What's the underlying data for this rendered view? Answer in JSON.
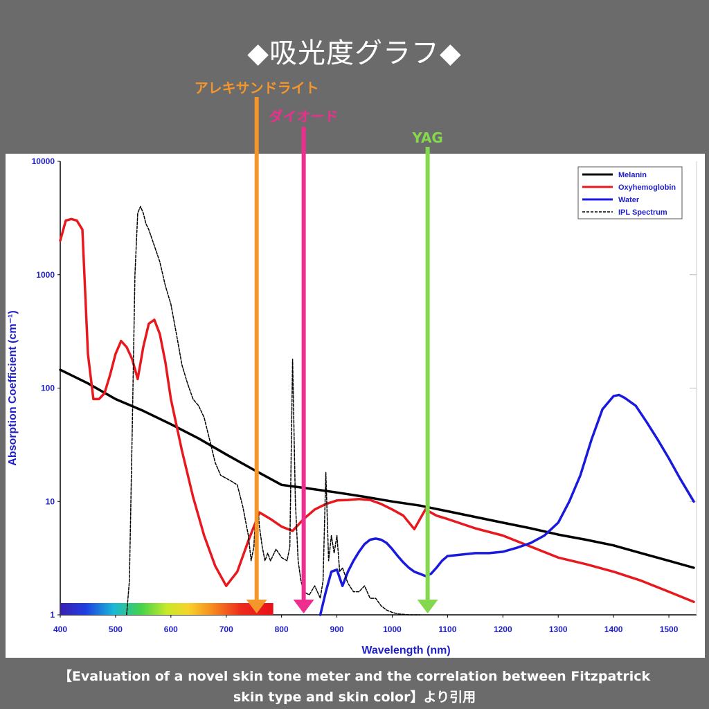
{
  "page": {
    "title": "◆吸光度グラフ◆",
    "caption_line1": "【Evaluation of a novel skin tone meter and the correlation between Fitzpatrick",
    "caption_line2": "skin type and skin color】より引用"
  },
  "colors": {
    "background": "#6b6b6b",
    "melanin": "#000000",
    "oxyhemoglobin": "#e8191e",
    "water": "#1a1adc",
    "ipl": "#000000",
    "axis_text": "#1f1fc8",
    "alexandrite": "#f5962a",
    "diode": "#ee2e8f",
    "yag": "#84d84e"
  },
  "chart_data": {
    "type": "line",
    "title": "",
    "xlabel": "Wavelength (nm)",
    "ylabel": "Absorption Coefficient (cm⁻¹)",
    "xlim": [
      400,
      1550
    ],
    "ylim": [
      1,
      10000
    ],
    "y_scale": "log",
    "x_ticks": [
      400,
      500,
      600,
      700,
      800,
      900,
      1000,
      1100,
      1200,
      1300,
      1400,
      1500
    ],
    "y_ticks": [
      1,
      10,
      100,
      1000,
      10000
    ],
    "y_tick_labels": [
      "1",
      "10",
      "100",
      "1000",
      "10000"
    ],
    "legend_position": "top-right",
    "grid": "minimal",
    "series": [
      {
        "name": "Melanin",
        "color": "#000000",
        "style": "solid",
        "x": [
          400,
          450,
          500,
          550,
          600,
          650,
          700,
          750,
          800,
          850,
          900,
          950,
          1000,
          1050,
          1100,
          1150,
          1200,
          1250,
          1300,
          1350,
          1400,
          1450,
          1500,
          1545
        ],
        "y": [
          145,
          110,
          80,
          63,
          48,
          36,
          26,
          19,
          14,
          13,
          12,
          11,
          10,
          9.2,
          8.2,
          7.3,
          6.5,
          5.8,
          5.1,
          4.6,
          4.1,
          3.5,
          3.0,
          2.6
        ]
      },
      {
        "name": "Oxyhemoglobin",
        "color": "#e8191e",
        "style": "solid",
        "x": [
          400,
          410,
          420,
          430,
          440,
          450,
          460,
          470,
          480,
          490,
          500,
          510,
          520,
          530,
          540,
          550,
          560,
          570,
          580,
          590,
          600,
          620,
          640,
          660,
          680,
          700,
          720,
          740,
          760,
          780,
          800,
          820,
          840,
          860,
          880,
          900,
          920,
          940,
          960,
          980,
          1000,
          1020,
          1040,
          1060,
          1080,
          1100,
          1150,
          1200,
          1250,
          1300,
          1350,
          1400,
          1450,
          1500,
          1545
        ],
        "y": [
          2000,
          3000,
          3100,
          3000,
          2500,
          200,
          80,
          80,
          90,
          130,
          200,
          260,
          230,
          180,
          120,
          230,
          370,
          400,
          300,
          170,
          80,
          28,
          11,
          5,
          2.7,
          1.8,
          2.4,
          4.5,
          8,
          7,
          6,
          5.5,
          7,
          8.5,
          9.5,
          10.2,
          10.3,
          10.5,
          10.3,
          9.5,
          8.5,
          7.5,
          5.7,
          8.5,
          7.5,
          7,
          5.8,
          5,
          4,
          3.2,
          2.8,
          2.4,
          2,
          1.6,
          1.3
        ]
      },
      {
        "name": "Water",
        "color": "#1a1adc",
        "style": "solid",
        "x": [
          870,
          880,
          890,
          900,
          910,
          920,
          930,
          940,
          950,
          960,
          970,
          980,
          990,
          1000,
          1010,
          1020,
          1030,
          1040,
          1050,
          1060,
          1070,
          1080,
          1090,
          1100,
          1125,
          1150,
          1175,
          1200,
          1225,
          1250,
          1275,
          1300,
          1320,
          1340,
          1360,
          1380,
          1400,
          1410,
          1420,
          1440,
          1460,
          1480,
          1500,
          1520,
          1545
        ],
        "y": [
          1,
          1.6,
          2.4,
          2.5,
          1.8,
          2.4,
          3.0,
          3.6,
          4.2,
          4.6,
          4.7,
          4.6,
          4.3,
          3.8,
          3.3,
          2.9,
          2.6,
          2.4,
          2.3,
          2.2,
          2.3,
          2.6,
          3.0,
          3.3,
          3.4,
          3.5,
          3.5,
          3.6,
          3.9,
          4.3,
          5,
          6.5,
          10,
          17,
          35,
          65,
          85,
          87,
          82,
          70,
          50,
          35,
          24,
          16,
          10
        ]
      },
      {
        "name": "IPL Spectrum",
        "color": "#000000",
        "style": "dashed",
        "x": [
          520,
          525,
          530,
          535,
          540,
          545,
          550,
          555,
          560,
          570,
          580,
          590,
          600,
          610,
          620,
          630,
          640,
          650,
          660,
          670,
          680,
          690,
          700,
          710,
          720,
          730,
          740,
          745,
          750,
          755,
          760,
          765,
          770,
          775,
          780,
          790,
          800,
          810,
          815,
          820,
          825,
          830,
          835,
          840,
          850,
          860,
          870,
          875,
          880,
          885,
          890,
          895,
          900,
          905,
          910,
          920,
          930,
          940,
          950,
          960,
          970,
          980,
          990,
          1000,
          1010,
          1020,
          1030,
          1040,
          1050
        ],
        "y": [
          1,
          2,
          40,
          1000,
          3500,
          4000,
          3500,
          2800,
          2500,
          1800,
          1300,
          800,
          550,
          300,
          160,
          110,
          80,
          70,
          55,
          35,
          22,
          17,
          16,
          15,
          14,
          9,
          5,
          3,
          4,
          12,
          6,
          4,
          3,
          3.5,
          3,
          3.8,
          3.2,
          3,
          4,
          180,
          10,
          3,
          2,
          1.6,
          1.5,
          1.8,
          1.4,
          2,
          18,
          3,
          5,
          3.5,
          5,
          2.4,
          2.6,
          1.9,
          1.6,
          1.6,
          1.8,
          1.4,
          1.4,
          1.2,
          1.1,
          1.05,
          1.02,
          1.01,
          1.0,
          1.0,
          1.0
        ]
      }
    ],
    "color_bar": {
      "x_start": 400,
      "x_end": 785
    },
    "annotations": [
      {
        "label": "アレキサンドライト",
        "wavelength": 755,
        "color": "#f5962a"
      },
      {
        "label": "ダイオード",
        "wavelength": 840,
        "color": "#ee2e8f"
      },
      {
        "label": "YAG",
        "wavelength": 1064,
        "color": "#84d84e"
      }
    ]
  }
}
